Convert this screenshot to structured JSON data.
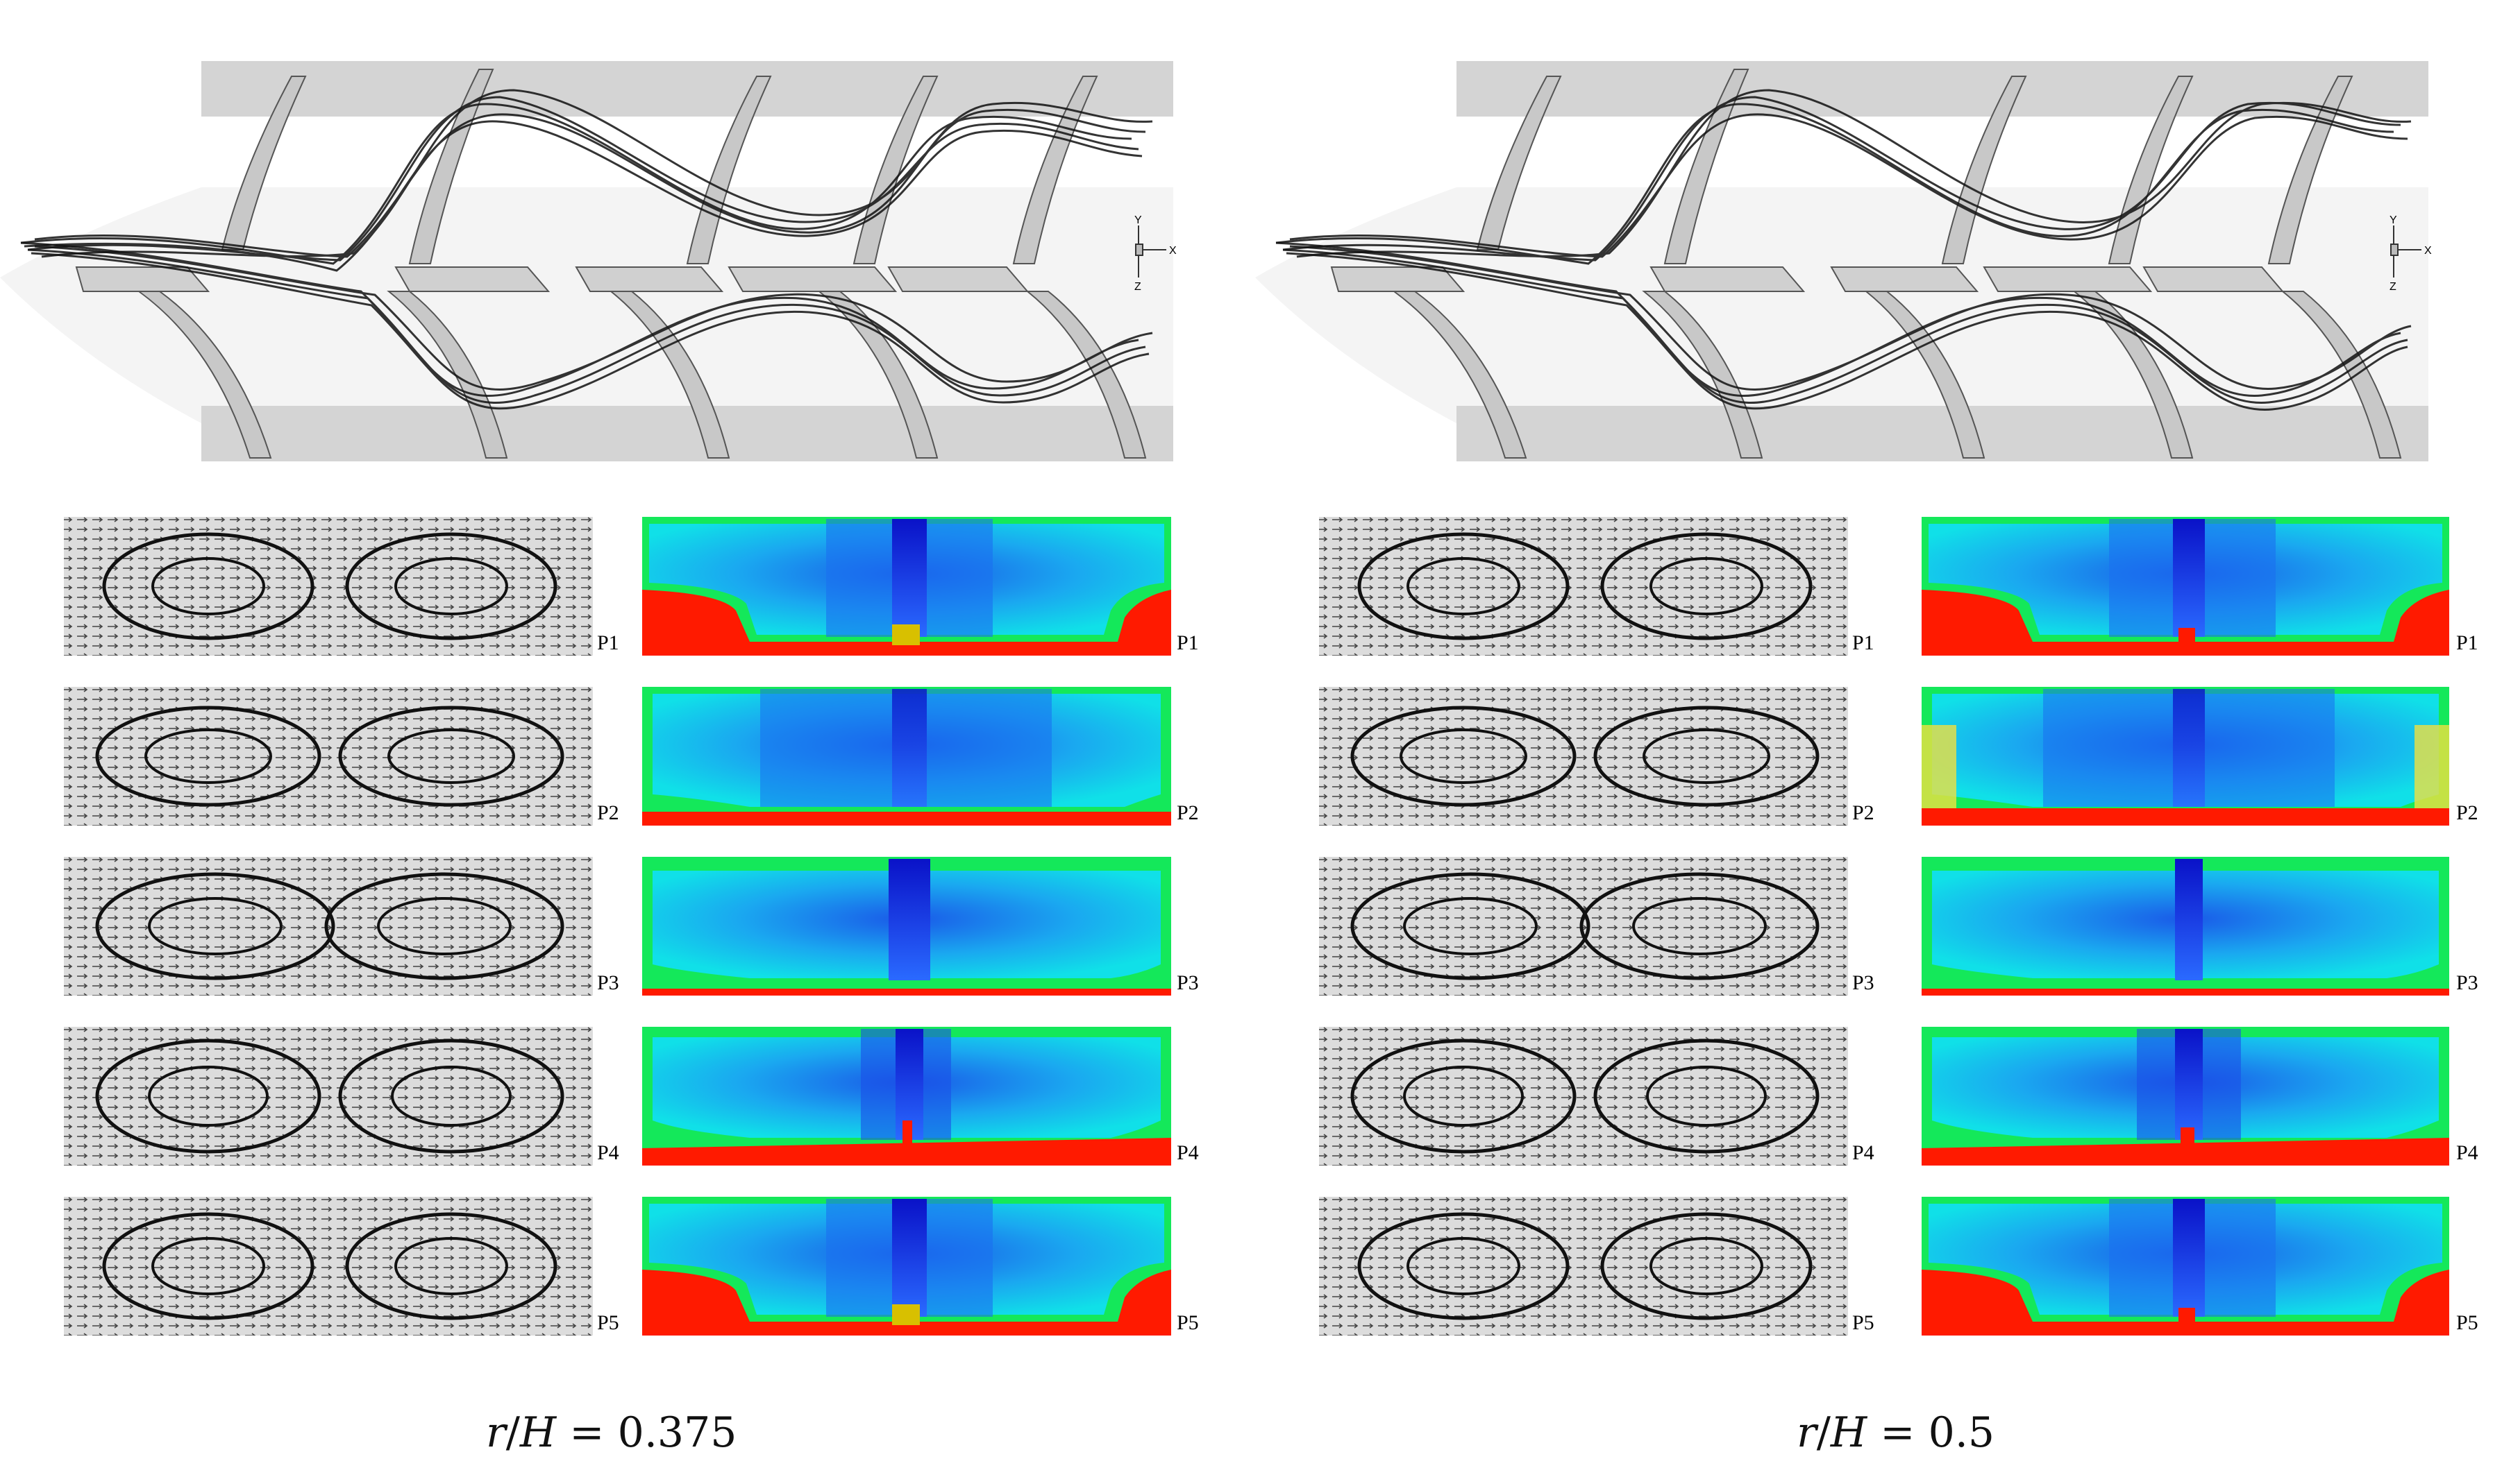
{
  "panels": [
    {
      "id": "left",
      "ratio_label": "0.375",
      "ratio_prefix_r": "r",
      "ratio_prefix_h": "H",
      "ratio_sep": "/",
      "ratio_eq": " = ",
      "planes": [
        "P1",
        "P2",
        "P3",
        "P4",
        "P5"
      ],
      "axis_labels": {
        "x": "X",
        "y": "Y",
        "z": "Z"
      }
    },
    {
      "id": "right",
      "ratio_label": "0.5",
      "ratio_prefix_r": "r",
      "ratio_prefix_h": "H",
      "ratio_sep": "/",
      "ratio_eq": " = ",
      "planes": [
        "P1",
        "P2",
        "P3",
        "P4",
        "P5"
      ],
      "axis_labels": {
        "x": "X",
        "y": "Y",
        "z": "Z"
      }
    }
  ],
  "colors": {
    "channel_wall": "#d6d6d6",
    "contour_high": "#ff1a00",
    "contour_mid": "#14e85a",
    "contour_low": "#1a4fe8",
    "contour_core": "#0a1ad0",
    "vector_bg": "#dcdcdc"
  }
}
